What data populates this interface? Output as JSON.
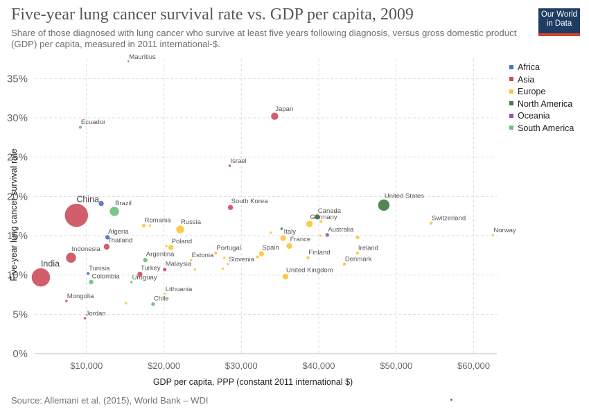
{
  "header": {
    "title": "Five-year lung cancer survival rate vs. GDP per capita, 2009",
    "subtitle": "Share of those diagnosed with lung cancer who survive at least five years following diagnosis, versus gross domestic product (GDP) per capita, measured in 2011 international-$.",
    "logo_line1": "Our World",
    "logo_line2": "in Data"
  },
  "footer": {
    "source": "Source: Allemani et al. (2015), World Bank – WDI"
  },
  "colors": {
    "Africa": "#4c6fc4",
    "Asia": "#cc4c5a",
    "Europe": "#f8c838",
    "North America": "#3e7a44",
    "Oceania": "#9b4fb8",
    "South America": "#6cc07c"
  },
  "chart_data": {
    "type": "scatter",
    "xlabel": "GDP per capita, PPP (constant 2011 international $)",
    "ylabel": "Five-year lung cancer survival rate",
    "xlim": [
      3300,
      63000
    ],
    "ylim": [
      0,
      37.5
    ],
    "xticks": [
      10000,
      20000,
      30000,
      40000,
      50000,
      60000
    ],
    "xtick_labels": [
      "$10,000",
      "$20,000",
      "$30,000",
      "$40,000",
      "$50,000",
      "$60,000"
    ],
    "yticks": [
      0,
      5,
      10,
      15,
      20,
      25,
      30,
      35
    ],
    "ytick_labels": [
      "0%",
      "5%",
      "10%",
      "15%",
      "20%",
      "25%",
      "30%",
      "35%"
    ],
    "grid": true,
    "legend_position": "right",
    "legend": [
      "Africa",
      "Asia",
      "Europe",
      "North America",
      "Oceania",
      "South America"
    ],
    "points": [
      {
        "label": "Mauritius",
        "continent": "Africa",
        "x": 15400,
        "y": 37.2,
        "size": 1.5
      },
      {
        "label": "Japan",
        "continent": "Asia",
        "x": 34300,
        "y": 30.2,
        "size": 5.5
      },
      {
        "label": "Ecuador",
        "continent": "South America",
        "x": 9200,
        "y": 28.8,
        "size": 2.5
      },
      {
        "label": "Israel",
        "continent": "Asia",
        "x": 28500,
        "y": 23.9,
        "size": 2
      },
      {
        "label": "United States",
        "continent": "North America",
        "x": 48400,
        "y": 18.9,
        "size": 8.5
      },
      {
        "label": "South Korea",
        "continent": "Asia",
        "x": 28600,
        "y": 18.6,
        "size": 4
      },
      {
        "label": "China",
        "continent": "Asia",
        "x": 8700,
        "y": 17.6,
        "size": 17
      },
      {
        "label": "",
        "continent": "Africa",
        "x": 11900,
        "y": 19.1,
        "size": 4
      },
      {
        "label": "Brazil",
        "continent": "South America",
        "x": 13600,
        "y": 18.1,
        "size": 7
      },
      {
        "label": "Canada",
        "continent": "North America",
        "x": 39800,
        "y": 17.4,
        "size": 4
      },
      {
        "label": "",
        "continent": "Europe",
        "x": 42200,
        "y": 18,
        "size": 2
      },
      {
        "label": "Germany",
        "continent": "Europe",
        "x": 38800,
        "y": 16.5,
        "size": 5
      },
      {
        "label": "",
        "continent": "Europe",
        "x": 40300,
        "y": 16.8,
        "size": 2.5
      },
      {
        "label": "",
        "continent": "North America",
        "x": 35200,
        "y": 15.9,
        "size": 2
      },
      {
        "label": "Switzerland",
        "continent": "Europe",
        "x": 54500,
        "y": 16.6,
        "size": 2.5
      },
      {
        "label": "Romania",
        "continent": "Europe",
        "x": 17400,
        "y": 16.3,
        "size": 3
      },
      {
        "label": "",
        "continent": "Europe",
        "x": 18200,
        "y": 16.3,
        "size": 2
      },
      {
        "label": "Russia",
        "continent": "Europe",
        "x": 22100,
        "y": 15.8,
        "size": 6
      },
      {
        "label": "Australia",
        "continent": "Oceania",
        "x": 41100,
        "y": 15.1,
        "size": 3
      },
      {
        "label": "Norway",
        "continent": "Europe",
        "x": 62500,
        "y": 15.1,
        "size": 2
      },
      {
        "label": "Italy",
        "continent": "Europe",
        "x": 35400,
        "y": 14.7,
        "size": 4.5
      },
      {
        "label": "",
        "continent": "Europe",
        "x": 33800,
        "y": 15.4,
        "size": 2
      },
      {
        "label": "",
        "continent": "Europe",
        "x": 40200,
        "y": 15.0,
        "size": 2
      },
      {
        "label": "",
        "continent": "Europe",
        "x": 45000,
        "y": 14.8,
        "size": 3
      },
      {
        "label": "Algeria",
        "continent": "Africa",
        "x": 12700,
        "y": 14.8,
        "size": 3.5
      },
      {
        "label": "Thailand",
        "continent": "Asia",
        "x": 12600,
        "y": 13.6,
        "size": 4.5
      },
      {
        "label": "Poland",
        "continent": "Europe",
        "x": 20900,
        "y": 13.5,
        "size": 4
      },
      {
        "label": "",
        "continent": "Europe",
        "x": 20300,
        "y": 13.7,
        "size": 2
      },
      {
        "label": "France",
        "continent": "Europe",
        "x": 36200,
        "y": 13.7,
        "size": 4.5
      },
      {
        "label": "Ireland",
        "continent": "Europe",
        "x": 45000,
        "y": 12.8,
        "size": 2.5
      },
      {
        "label": "Portugal",
        "continent": "Europe",
        "x": 26700,
        "y": 12.8,
        "size": 2.5
      },
      {
        "label": "Spain",
        "continent": "Europe",
        "x": 32600,
        "y": 12.7,
        "size": 4
      },
      {
        "label": "",
        "continent": "Europe",
        "x": 32100,
        "y": 12.3,
        "size": 2.5
      },
      {
        "label": "Finland",
        "continent": "Europe",
        "x": 38600,
        "y": 12.2,
        "size": 2.5
      },
      {
        "label": "Indonesia",
        "continent": "Asia",
        "x": 8000,
        "y": 12.2,
        "size": 7.5
      },
      {
        "label": "Estonia",
        "continent": "Europe",
        "x": 23500,
        "y": 11.9,
        "size": 2
      },
      {
        "label": "",
        "continent": "Europe",
        "x": 27800,
        "y": 12.2,
        "size": 2
      },
      {
        "label": "Slovenia",
        "continent": "Europe",
        "x": 28300,
        "y": 11.4,
        "size": 2
      },
      {
        "label": "Denmark",
        "continent": "Europe",
        "x": 43300,
        "y": 11.4,
        "size": 2.5
      },
      {
        "label": "Argentina",
        "continent": "South America",
        "x": 17600,
        "y": 11.9,
        "size": 3.5
      },
      {
        "label": "Malaysia",
        "continent": "Asia",
        "x": 20100,
        "y": 10.7,
        "size": 3
      },
      {
        "label": "",
        "continent": "Europe",
        "x": 24000,
        "y": 10.7,
        "size": 2
      },
      {
        "label": "",
        "continent": "Europe",
        "x": 27600,
        "y": 10.8,
        "size": 2
      },
      {
        "label": "Turkey",
        "continent": "Asia",
        "x": 16900,
        "y": 10.1,
        "size": 4
      },
      {
        "label": "Tunisia",
        "continent": "Africa",
        "x": 10200,
        "y": 10.2,
        "size": 2.5
      },
      {
        "label": "India",
        "continent": "Asia",
        "x": 4100,
        "y": 9.7,
        "size": 13.5
      },
      {
        "label": "United Kingdom",
        "continent": "Europe",
        "x": 35700,
        "y": 9.8,
        "size": 4.5
      },
      {
        "label": "Colombia",
        "continent": "South America",
        "x": 10600,
        "y": 9.1,
        "size": 3.5
      },
      {
        "label": "Uruguay",
        "continent": "South America",
        "x": 15800,
        "y": 9.1,
        "size": 2
      },
      {
        "label": "Lithuania",
        "continent": "Europe",
        "x": 20100,
        "y": 7.6,
        "size": 2
      },
      {
        "label": "Mongolia",
        "continent": "Asia",
        "x": 7400,
        "y": 6.7,
        "size": 2
      },
      {
        "label": "",
        "continent": "Europe",
        "x": 15100,
        "y": 6.4,
        "size": 2
      },
      {
        "label": "Chile",
        "continent": "South America",
        "x": 18600,
        "y": 6.3,
        "size": 3
      },
      {
        "label": "Jordan",
        "continent": "Asia",
        "x": 9800,
        "y": 4.5,
        "size": 2
      }
    ]
  }
}
